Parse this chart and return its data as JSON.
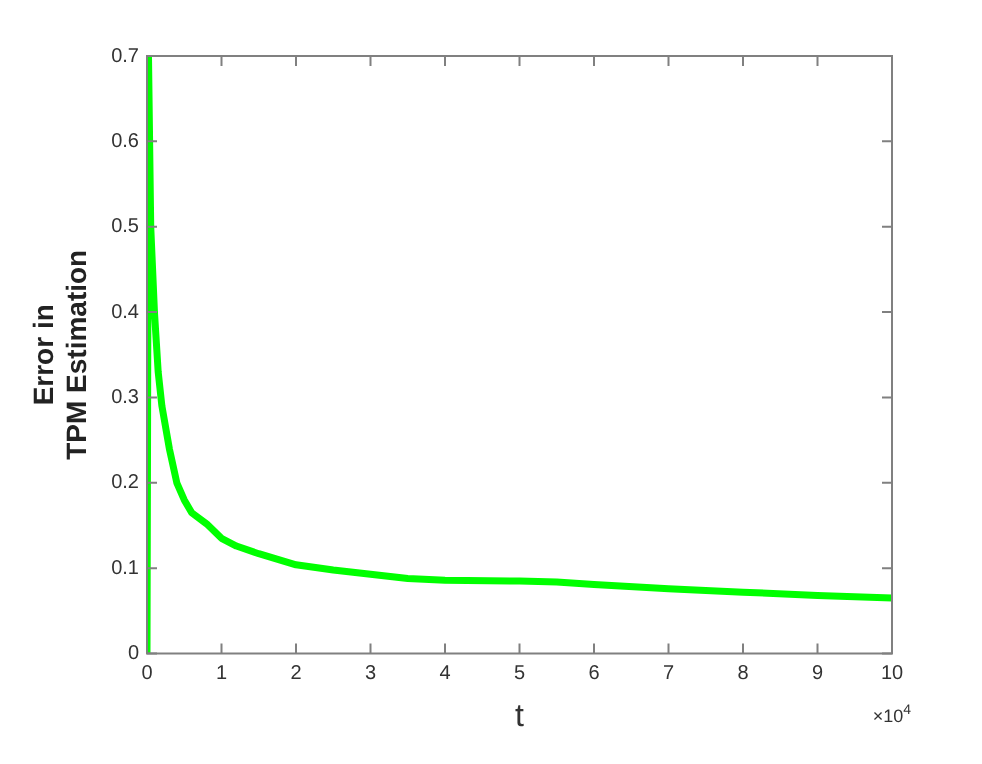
{
  "chart_data": {
    "type": "line",
    "xlabel": "t",
    "ylabel": "Error in\nTPM Estimation",
    "annotations": [
      "×10$^{4}$"
    ],
    "xlim": [
      0,
      10
    ],
    "xticks": [
      0,
      1,
      2,
      3,
      4,
      5,
      6,
      7,
      8,
      9,
      10
    ],
    "ylim": [
      0,
      0.7
    ],
    "yticks": [
      0,
      0.1,
      0.2,
      0.3,
      0.4,
      0.5,
      0.6,
      0.7
    ],
    "grid": false,
    "legend": false,
    "marker": "none",
    "line_style": "solid",
    "x": [
      0,
      0.02,
      0.05,
      0.1,
      0.15,
      0.2,
      0.3,
      0.4,
      0.5,
      0.6,
      0.8,
      1,
      1.2,
      1.5,
      2,
      2.5,
      3,
      3.5,
      4,
      5,
      5.5,
      6,
      7,
      8,
      9,
      10
    ],
    "series": [
      {
        "color": "#00ff00",
        "values": [
          0,
          0.7,
          0.5,
          0.4,
          0.33,
          0.29,
          0.24,
          0.2,
          0.18,
          0.165,
          0.152,
          0.135,
          0.126,
          0.117,
          0.104,
          0.098,
          0.093,
          0.088,
          0.086,
          0.085,
          0.084,
          0.081,
          0.076,
          0.072,
          0.068,
          0.065
        ]
      }
    ]
  }
}
